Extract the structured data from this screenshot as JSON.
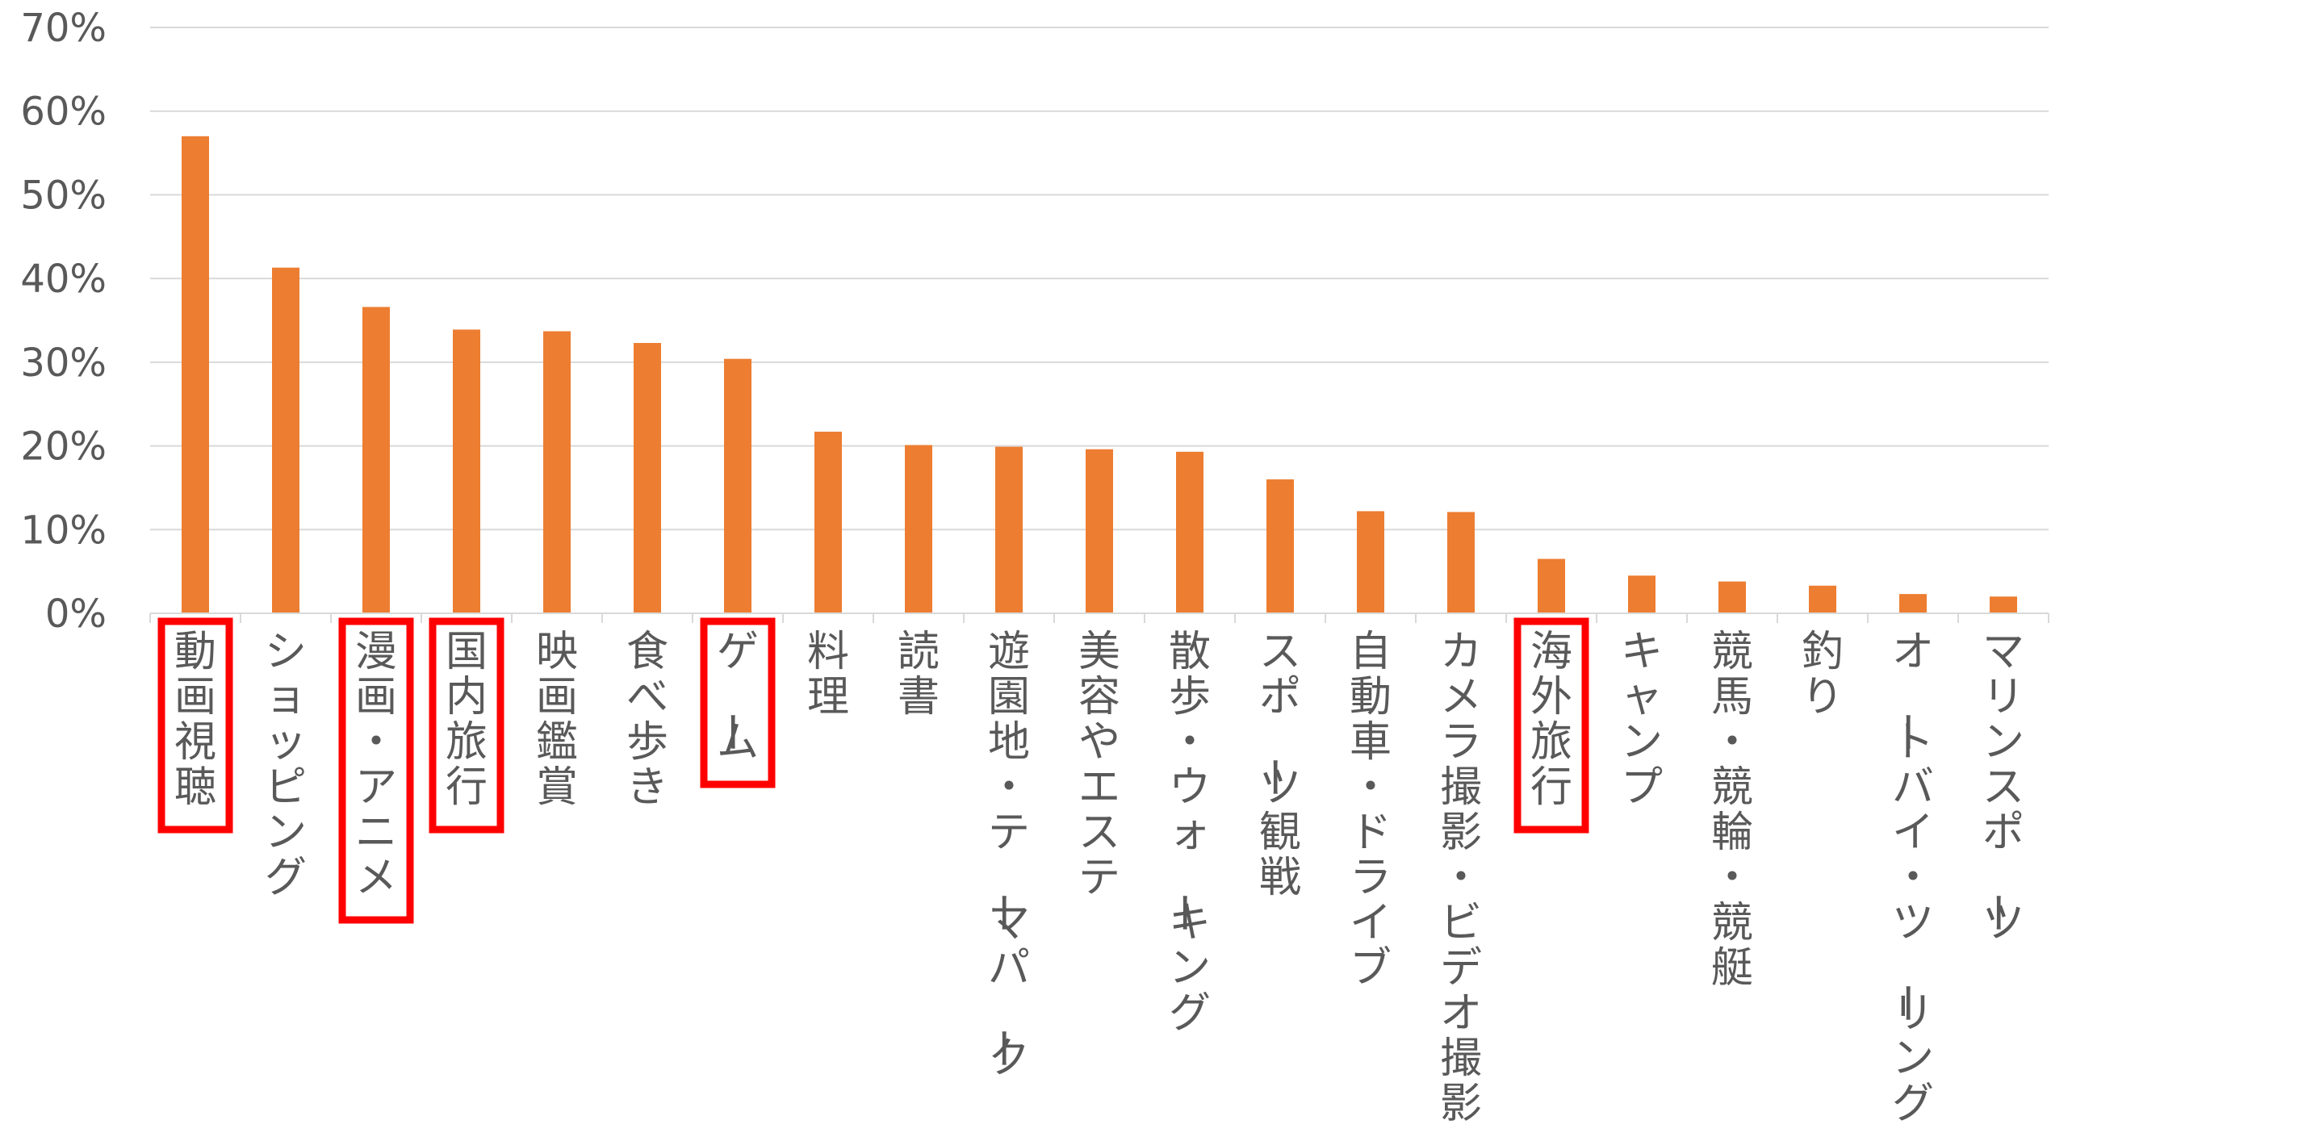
{
  "chart_data": {
    "type": "bar",
    "title": "",
    "xlabel": "",
    "ylabel": "",
    "ylim": [
      0,
      70
    ],
    "y_unit": "%",
    "y_ticks": [
      "0%",
      "10%",
      "20%",
      "30%",
      "40%",
      "50%",
      "60%",
      "70%"
    ],
    "grid": true,
    "legend": "none",
    "bar_color": "#ED7D31",
    "highlight_color": "#FF0000",
    "categories": [
      "動画視聴",
      "ショッピング",
      "漫画・アニメ",
      "国内旅行",
      "映画鑑賞",
      "食べ歩き",
      "ゲーム",
      "料理",
      "読書",
      "遊園地・テーマパーク",
      "美容やエステ",
      "散歩・ウォーキング",
      "スポーツ観戦",
      "自動車・ドライブ",
      "カメラ撮影・ビデオ撮影",
      "海外旅行",
      "キャンプ",
      "競馬・競輪・競艇",
      "釣り",
      "オートバイ・ツーリング",
      "マリンスポーツ"
    ],
    "values": [
      57.0,
      41.3,
      36.6,
      33.9,
      33.7,
      32.3,
      30.4,
      21.7,
      20.1,
      19.9,
      19.6,
      19.3,
      16.0,
      12.2,
      12.1,
      6.5,
      4.5,
      3.8,
      3.3,
      2.3,
      2.0
    ],
    "highlighted": [
      "動画視聴",
      "漫画・アニメ",
      "国内旅行",
      "ゲーム",
      "海外旅行"
    ]
  }
}
